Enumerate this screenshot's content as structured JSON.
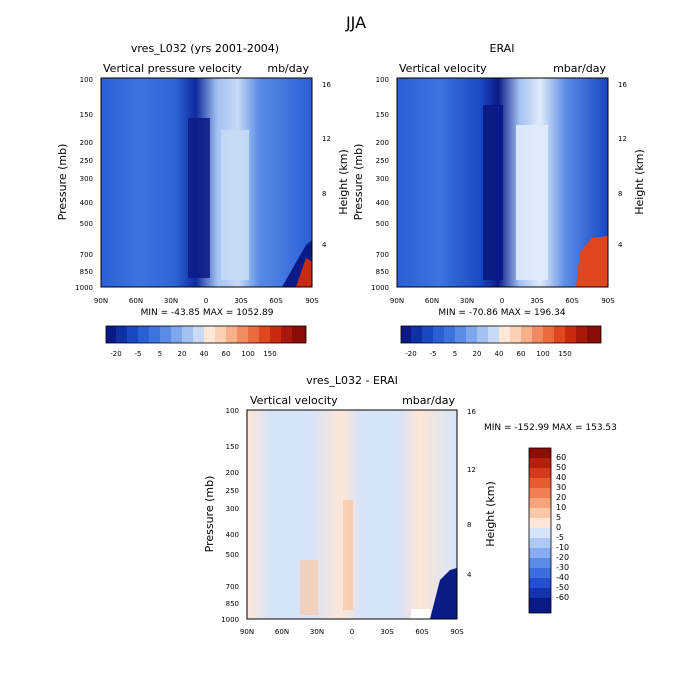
{
  "figure": {
    "title": "JJA"
  },
  "colors": {
    "blues": [
      "#0a1a86",
      "#1030a8",
      "#1a47c4",
      "#2a5fd6",
      "#3c74df",
      "#5a8be6",
      "#7ea6ec",
      "#a3c1f1",
      "#c7daf6",
      "#e0ebfa"
    ],
    "reds": [
      "#fde8d8",
      "#fbd0b4",
      "#f8b08c",
      "#f38b62",
      "#ec6a3e",
      "#e0471f",
      "#c92a10",
      "#a9180a",
      "#8a0c06"
    ],
    "diff_blues": [
      "#0a1a86",
      "#1532b0",
      "#2450d0",
      "#3c6edf",
      "#5a8be6",
      "#86abee",
      "#b0c9f4",
      "#d6e4fa"
    ],
    "diff_reds": [
      "#fde6d6",
      "#fbc9a8",
      "#f8a57c",
      "#f27e54",
      "#e85a30",
      "#d3391a",
      "#b51f0c",
      "#8e0c06"
    ]
  },
  "chart_data": [
    {
      "type": "heatmap",
      "title": "vres_L032 (yrs 2001-2004)",
      "left_label": "Vertical pressure velocity",
      "right_label": "mb/day",
      "ylabel": "Pressure (mb)",
      "ylabel_right": "Height (km)",
      "xticks": [
        "90N",
        "60N",
        "30N",
        "0",
        "30S",
        "60S",
        "90S"
      ],
      "yticks": [
        "100",
        "150",
        "200",
        "250",
        "300",
        "400",
        "500",
        "700",
        "850",
        "1000"
      ],
      "ylim": [
        1000,
        100
      ],
      "height_ticks": [
        "4",
        "8",
        "12",
        "16"
      ],
      "stats": "MIN = -43.85  MAX = 1052.89",
      "colorbar_labels": [
        "-20",
        "-5",
        "5",
        "20",
        "40",
        "60",
        "100",
        "150"
      ]
    },
    {
      "type": "heatmap",
      "title": "ERAI",
      "left_label": "Vertical velocity",
      "right_label": "mbar/day",
      "ylabel": "Pressure (mb)",
      "ylabel_right": "Height (km)",
      "xticks": [
        "90N",
        "60N",
        "30N",
        "0",
        "30S",
        "60S",
        "90S"
      ],
      "yticks": [
        "100",
        "150",
        "200",
        "250",
        "300",
        "400",
        "500",
        "700",
        "850",
        "1000"
      ],
      "ylim": [
        1000,
        100
      ],
      "height_ticks": [
        "4",
        "8",
        "12",
        "16"
      ],
      "stats": "MIN = -70.86  MAX = 196.34",
      "colorbar_labels": [
        "-20",
        "-5",
        "5",
        "20",
        "40",
        "60",
        "100",
        "150"
      ]
    },
    {
      "type": "heatmap",
      "title": "vres_L032 - ERAI",
      "left_label": "Vertical velocity",
      "right_label": "mbar/day",
      "ylabel": "Pressure (mb)",
      "ylabel_right": "Height (km)",
      "xticks": [
        "90N",
        "60N",
        "30N",
        "0",
        "30S",
        "60S",
        "90S"
      ],
      "yticks": [
        "100",
        "150",
        "200",
        "250",
        "300",
        "400",
        "500",
        "700",
        "850",
        "1000"
      ],
      "ylim": [
        1000,
        100
      ],
      "height_ticks": [
        "4",
        "8",
        "12",
        "16"
      ],
      "stats": "MIN = -152.99  MAX = 153.53",
      "colorbar_labels": [
        "60",
        "50",
        "40",
        "30",
        "20",
        "10",
        "5",
        "0",
        "-5",
        "-10",
        "-20",
        "-30",
        "-40",
        "-50",
        "-60"
      ]
    }
  ]
}
